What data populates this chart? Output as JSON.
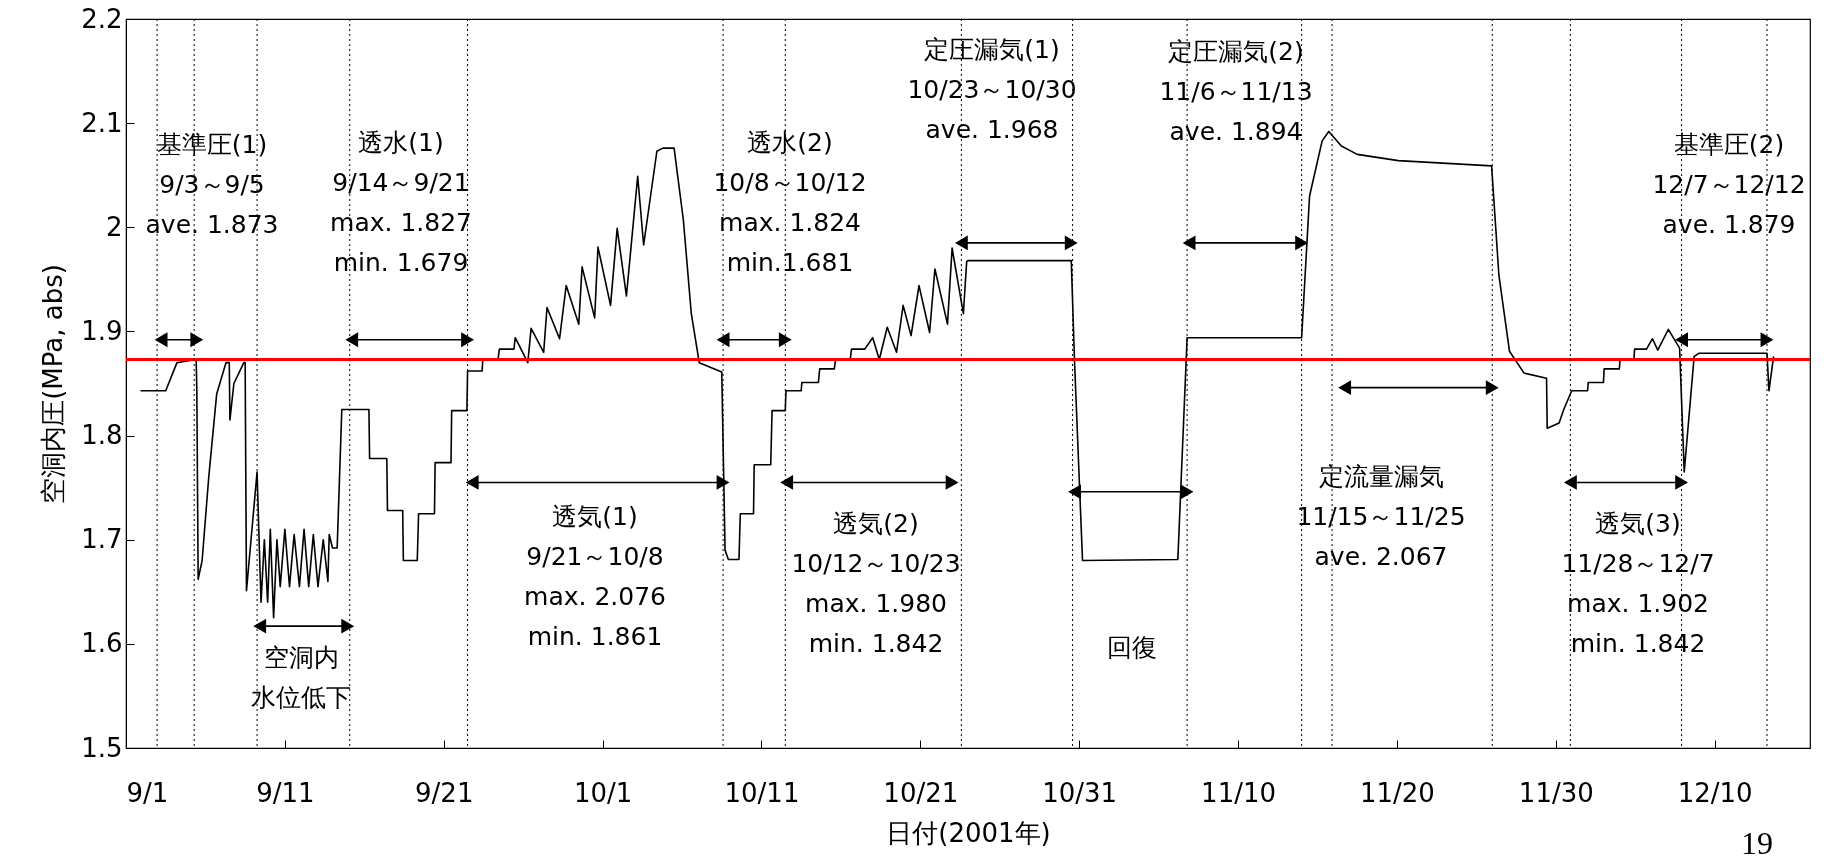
{
  "chart_data": {
    "type": "line",
    "xlabel": "日付(2001年)",
    "ylabel": "空洞内圧(MPa, abs)",
    "xlim": [
      "2001-09-01T00:00",
      "2001-12-16T00:00"
    ],
    "xticks": [
      {
        "value": "2001-09-01T00:00",
        "label": "9/1"
      },
      {
        "value": "2001-09-11T00:00",
        "label": "9/11"
      },
      {
        "value": "2001-09-21T00:00",
        "label": "9/21"
      },
      {
        "value": "2001-10-01T00:00",
        "label": "10/1"
      },
      {
        "value": "2001-10-11T00:00",
        "label": "10/11"
      },
      {
        "value": "2001-10-21T00:00",
        "label": "10/21"
      },
      {
        "value": "2001-10-31T00:00",
        "label": "10/31"
      },
      {
        "value": "2001-11-10T00:00",
        "label": "11/10"
      },
      {
        "value": "2001-11-20T00:00",
        "label": "11/20"
      },
      {
        "value": "2001-11-30T00:00",
        "label": "11/30"
      },
      {
        "value": "2001-12-10T00:00",
        "label": "12/10"
      }
    ],
    "ylim": [
      1.5,
      2.2
    ],
    "yticks": [
      1.5,
      1.6,
      1.7,
      1.8,
      1.9,
      2,
      2.1,
      2.2
    ],
    "grid": false,
    "series": [
      {
        "color": "#000000",
        "marker": "none",
        "x": [
          "2001-09-01T22:00",
          "2001-09-03T12:00",
          "2001-09-04T05:00",
          "2001-09-05T10:00",
          "2001-09-05T11:00",
          "2001-09-05T13:00",
          "2001-09-05T19:00",
          "2001-09-06T05:00",
          "2001-09-06T17:00",
          "2001-09-07T07:00",
          "2001-09-07T12:00",
          "2001-09-07T13:00",
          "2001-09-07T19:00",
          "2001-09-08T10:00",
          "2001-09-08T12:00",
          "2001-09-08T14:00",
          "2001-09-09T06:00",
          "2001-09-09T10:00",
          "2001-09-09T12:00",
          "2001-09-09T17:00",
          "2001-09-09T22:00",
          "2001-09-10T02:00",
          "2001-09-10T07:00",
          "2001-09-10T12:00",
          "2001-09-10T17:00",
          "2001-09-11T00:00",
          "2001-09-11T07:00",
          "2001-09-11T14:00",
          "2001-09-11T22:00",
          "2001-09-12T05:00",
          "2001-09-12T12:00",
          "2001-09-12T19:00",
          "2001-09-13T02:00",
          "2001-09-13T10:00",
          "2001-09-13T17:00",
          "2001-09-13T19:00",
          "2001-09-14T00:00",
          "2001-09-14T07:00",
          "2001-09-14T14:00",
          "2001-09-16T07:00",
          "2001-09-16T08:00",
          "2001-09-17T10:00",
          "2001-09-17T11:00",
          "2001-09-18T10:00",
          "2001-09-18T11:00",
          "2001-09-19T08:00",
          "2001-09-19T10:00",
          "2001-09-20T10:00",
          "2001-09-20T11:00",
          "2001-09-21T11:00",
          "2001-09-21T12:00",
          "2001-09-22T11:00",
          "2001-09-22T12:00",
          "2001-09-23T10:00",
          "2001-09-23T11:00",
          "2001-09-24T10:00",
          "2001-09-24T12:00",
          "2001-09-25T10:00",
          "2001-09-25T12:00",
          "2001-09-26T07:00",
          "2001-09-26T12:00",
          "2001-09-27T07:00",
          "2001-09-27T12:00",
          "2001-09-28T07:00",
          "2001-09-28T17:00",
          "2001-09-29T12:00",
          "2001-09-29T17:00",
          "2001-09-30T12:00",
          "2001-09-30T17:00",
          "2001-10-01T12:00",
          "2001-10-01T22:00",
          "2001-10-02T12:00",
          "2001-10-03T05:00",
          "2001-10-03T14:00",
          "2001-10-04T10:00",
          "2001-10-04T19:00",
          "2001-10-05T12:00",
          "2001-10-06T02:00",
          "2001-10-06T14:00",
          "2001-10-07T02:00",
          "2001-10-08T12:00",
          "2001-10-08T17:00",
          "2001-10-08T22:00",
          "2001-10-09T14:00",
          "2001-10-09T16:00",
          "2001-10-10T12:00",
          "2001-10-10T13:00",
          "2001-10-11T14:00",
          "2001-10-11T16:00",
          "2001-10-12T12:00",
          "2001-10-12T13:00",
          "2001-10-13T12:00",
          "2001-10-13T13:00",
          "2001-10-14T14:00",
          "2001-10-14T16:00",
          "2001-10-15T14:00",
          "2001-10-15T16:00",
          "2001-10-16T14:00",
          "2001-10-16T16:00",
          "2001-10-17T12:00",
          "2001-10-18T00:00",
          "2001-10-18T10:00",
          "2001-10-18T22:00",
          "2001-10-19T12:00",
          "2001-10-19T22:00",
          "2001-10-20T10:00",
          "2001-10-20T22:00",
          "2001-10-21T14:00",
          "2001-10-21T22:00",
          "2001-10-22T17:00",
          "2001-10-23T00:00",
          "2001-10-23T17:00",
          "2001-10-23T22:00",
          "2001-10-24T00:00",
          "2001-10-30T12:00",
          "2001-10-30T17:00",
          "2001-10-31T05:00",
          "2001-11-06T05:00",
          "2001-11-06T19:00",
          "2001-11-14T00:00",
          "2001-11-14T12:00",
          "2001-11-15T07:00",
          "2001-11-15T17:00",
          "2001-11-16T12:00",
          "2001-11-17T12:00",
          "2001-11-20T02:00",
          "2001-11-25T23:00",
          "2001-11-26T10:00",
          "2001-11-27T02:00",
          "2001-11-28T00:00",
          "2001-11-29T10:00",
          "2001-11-29T11:00",
          "2001-11-30T05:00",
          "2001-11-30T12:00",
          "2001-12-01T00:00",
          "2001-12-02T00:00",
          "2001-12-02T01:00",
          "2001-12-03T00:00",
          "2001-12-03T01:00",
          "2001-12-04T00:00",
          "2001-12-04T01:00",
          "2001-12-04T22:00",
          "2001-12-04T23:00",
          "2001-12-05T17:00",
          "2001-12-06T02:00",
          "2001-12-06T10:00",
          "2001-12-07T02:00",
          "2001-12-07T19:00",
          "2001-12-08T02:00",
          "2001-12-08T17:00",
          "2001-12-09T00:00",
          "2001-12-13T07:00",
          "2001-12-13T10:00",
          "2001-12-13T17:00"
        ],
        "values": [
          1.843,
          1.843,
          1.87,
          1.873,
          1.843,
          1.662,
          1.68,
          1.76,
          1.84,
          1.87,
          1.87,
          1.815,
          1.85,
          1.87,
          1.87,
          1.651,
          1.765,
          1.68,
          1.64,
          1.7,
          1.64,
          1.71,
          1.625,
          1.7,
          1.655,
          1.71,
          1.655,
          1.705,
          1.655,
          1.71,
          1.655,
          1.705,
          1.655,
          1.7,
          1.66,
          1.705,
          1.692,
          1.692,
          1.825,
          1.825,
          1.778,
          1.778,
          1.728,
          1.728,
          1.68,
          1.68,
          1.725,
          1.725,
          1.774,
          1.774,
          1.824,
          1.824,
          1.862,
          1.862,
          1.873,
          1.873,
          1.883,
          1.883,
          1.894,
          1.87,
          1.903,
          1.88,
          1.923,
          1.893,
          1.944,
          1.907,
          1.962,
          1.913,
          1.981,
          1.925,
          1.999,
          1.934,
          2.049,
          1.983,
          2.073,
          2.076,
          2.076,
          2.007,
          1.917,
          1.87,
          1.861,
          1.69,
          1.681,
          1.681,
          1.725,
          1.725,
          1.772,
          1.772,
          1.824,
          1.824,
          1.843,
          1.843,
          1.851,
          1.851,
          1.864,
          1.864,
          1.873,
          1.873,
          1.883,
          1.883,
          1.894,
          1.873,
          1.904,
          1.88,
          1.925,
          1.896,
          1.944,
          1.899,
          1.96,
          1.907,
          1.98,
          1.917,
          1.967,
          1.968,
          1.968,
          1.87,
          1.68,
          1.681,
          1.894,
          1.894,
          2.03,
          2.083,
          2.092,
          2.078,
          2.07,
          2.064,
          2.059,
          1.954,
          1.881,
          1.86,
          1.855,
          1.807,
          1.812,
          1.825,
          1.843,
          1.843,
          1.851,
          1.851,
          1.864,
          1.864,
          1.873,
          1.873,
          1.883,
          1.883,
          1.893,
          1.882,
          1.902,
          1.884,
          1.765,
          1.876,
          1.879,
          1.879,
          1.843,
          1.876
        ]
      },
      {
        "color": "#000000",
        "marker": "triangle",
        "x": [
          "2001-09-03T05:00",
          "2001-09-05T11:00"
        ],
        "values": [
          1.892,
          1.892
        ]
      },
      {
        "color": "#000000",
        "marker": "triangle",
        "x": [
          "2001-09-15T05:00",
          "2001-09-22T12:00"
        ],
        "values": [
          1.892,
          1.892
        ]
      },
      {
        "color": "#000000",
        "marker": "triangle",
        "x": [
          "2001-09-09T10:00",
          "2001-09-14T23:00"
        ],
        "values": [
          1.617,
          1.617
        ]
      },
      {
        "color": "#000000",
        "marker": "triangle",
        "x": [
          "2001-09-22T19:00",
          "2001-10-08T14:00"
        ],
        "values": [
          1.755,
          1.755
        ]
      },
      {
        "color": "#000000",
        "marker": "triangle",
        "x": [
          "2001-10-08T14:00",
          "2001-10-12T12:00"
        ],
        "values": [
          1.892,
          1.892
        ]
      },
      {
        "color": "#000000",
        "marker": "triangle",
        "x": [
          "2001-10-12T14:00",
          "2001-10-23T00:00"
        ],
        "values": [
          1.755,
          1.755
        ]
      },
      {
        "color": "#000000",
        "marker": "triangle",
        "x": [
          "2001-10-23T14:00",
          "2001-10-30T12:00"
        ],
        "values": [
          1.985,
          1.985
        ]
      },
      {
        "color": "#000000",
        "marker": "triangle",
        "x": [
          "2001-10-30T17:00",
          "2001-11-06T19:00"
        ],
        "values": [
          1.746,
          1.746
        ]
      },
      {
        "color": "#000000",
        "marker": "triangle",
        "x": [
          "2001-11-06T22:00",
          "2001-11-14T00:00"
        ],
        "values": [
          1.985,
          1.985
        ]
      },
      {
        "color": "#000000",
        "marker": "triangle",
        "x": [
          "2001-11-16T17:00",
          "2001-11-26T00:00"
        ],
        "values": [
          1.846,
          1.846
        ]
      },
      {
        "color": "#000000",
        "marker": "triangle",
        "x": [
          "2001-11-30T22:00",
          "2001-12-07T22:00"
        ],
        "values": [
          1.755,
          1.755
        ]
      },
      {
        "color": "#000000",
        "marker": "triangle",
        "x": [
          "2001-12-07T22:00",
          "2001-12-13T07:00"
        ],
        "values": [
          1.892,
          1.892
        ]
      }
    ],
    "ref_lines": [
      {
        "axis": "y",
        "value": 1.873,
        "color": "#ff0000",
        "line_style": "solid"
      },
      {
        "axis": "x",
        "value": "2001-09-02T23:00",
        "color": "#000000",
        "line_style": "dotted"
      },
      {
        "axis": "x",
        "value": "2001-09-05T07:00",
        "color": "#000000",
        "line_style": "dotted"
      },
      {
        "axis": "x",
        "value": "2001-09-09T06:00",
        "color": "#000000",
        "line_style": "dotted"
      },
      {
        "axis": "x",
        "value": "2001-09-15T02:00",
        "color": "#000000",
        "line_style": "dotted"
      },
      {
        "axis": "x",
        "value": "2001-09-22T12:00",
        "color": "#000000",
        "line_style": "dotted"
      },
      {
        "axis": "x",
        "value": "2001-10-08T14:00",
        "color": "#000000",
        "line_style": "dotted"
      },
      {
        "axis": "x",
        "value": "2001-10-12T12:00",
        "color": "#000000",
        "line_style": "dotted"
      },
      {
        "axis": "x",
        "value": "2001-10-23T14:00",
        "color": "#000000",
        "line_style": "dotted"
      },
      {
        "axis": "x",
        "value": "2001-10-30T14:00",
        "color": "#000000",
        "line_style": "dotted"
      },
      {
        "axis": "x",
        "value": "2001-11-06T19:00",
        "color": "#000000",
        "line_style": "dotted"
      },
      {
        "axis": "x",
        "value": "2001-11-14T00:00",
        "color": "#000000",
        "line_style": "dotted"
      },
      {
        "axis": "x",
        "value": "2001-11-15T22:00",
        "color": "#000000",
        "line_style": "dotted"
      },
      {
        "axis": "x",
        "value": "2001-11-26T00:00",
        "color": "#000000",
        "line_style": "dotted"
      },
      {
        "axis": "x",
        "value": "2001-11-30T22:00",
        "color": "#000000",
        "line_style": "dotted"
      },
      {
        "axis": "x",
        "value": "2001-12-07T22:00",
        "color": "#000000",
        "line_style": "dotted"
      },
      {
        "axis": "x",
        "value": "2001-12-13T07:00",
        "color": "#000000",
        "line_style": "dotted"
      }
    ],
    "annotations": [
      "基準圧(1)\n9/3～9/5\nave. 1.873",
      "透水(1)\n9/14～9/21\nmax. 1.827\nmin. 1.679",
      "空洞内水位低下",
      "透気(1)\n9/21～10/8\nmax. 2.076\nmin. 1.861",
      "透水(2)\n10/8～10/12\nmax. 1.824\nmin.1.681",
      "透気(2)\n10/12～10/23\nmax. 1.980\nmin. 1.842",
      "定圧漏気(1)\n10/23～10/30\nave. 1.968",
      "定圧漏気(2)\n11/6～11/13\nave. 1.894",
      "回復",
      "定流量漏気\n11/15～11/25\nave. 2.067",
      "透気(3)\n11/28～12/7\nmax. 1.902\nmin. 1.842",
      "基準圧(2)\n12/7～12/12\nave. 1.879",
      "19"
    ]
  }
}
